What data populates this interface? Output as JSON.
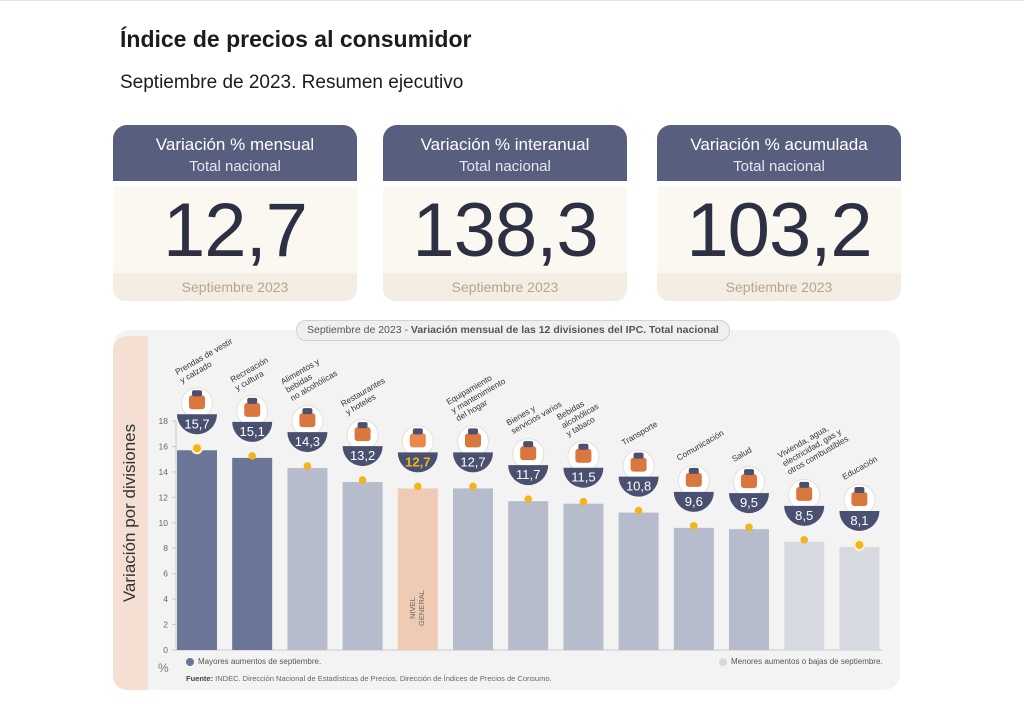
{
  "header": {
    "title": "Índice de precios al consumidor",
    "subtitle": "Septiembre de 2023. Resumen ejecutivo"
  },
  "kpis": [
    {
      "title": "Variación % mensual",
      "subtitle": "Total nacional",
      "value": "12,7",
      "footer": "Septiembre 2023"
    },
    {
      "title": "Variación % interanual",
      "subtitle": "Total nacional",
      "value": "138,3",
      "footer": "Septiembre 2023"
    },
    {
      "title": "Variación % acumulada",
      "subtitle": "Total nacional",
      "value": "103,2",
      "footer": "Septiembre 2023"
    }
  ],
  "chart": {
    "caption_prefix": "Septiembre de 2023 - ",
    "caption_bold": "Variación mensual de las 12 divisiones del IPC. Total nacional",
    "y_title": "Variación por divisiones",
    "unit_symbol": "%",
    "legend_high": "Mayores aumentos de septiembre.",
    "legend_low": "Menores aumentos o bajas de septiembre.",
    "source_label": "Fuente:",
    "source_text": " INDEC. Dirección Nacional de Estadísticas de Precios. Dirección de Índices de Precios de Consumo.",
    "colors": {
      "high": "#6a7597",
      "mid": "#b6bccb",
      "low": "#d6d9df",
      "general": "#efcbb3",
      "badge": "#4a5170",
      "marker": "#f2b41c",
      "general_value": "#f2b41c"
    }
  },
  "chart_data": {
    "type": "bar",
    "ylim": [
      0,
      18
    ],
    "yticks": [
      0,
      2,
      4,
      6,
      8,
      10,
      12,
      14,
      16,
      18
    ],
    "categories": [
      "Prendas de vestir y calzado",
      "Recreación y cultura",
      "Alimentos y bebidas no alcohólicas",
      "Restaurantes y hoteles",
      "NIVEL GENERAL",
      "Equipamiento y mantenimiento del hogar",
      "Bienes y servicios varios",
      "Bebidas alcohólicas y tabaco",
      "Transporte",
      "Comunicación",
      "Salud",
      "Vivienda, agua, electricidad, gas y otros combustibles",
      "Educación"
    ],
    "label_lines": [
      [
        "Prendas de vestir",
        "y calzado"
      ],
      [
        "Recreación",
        "y cultura"
      ],
      [
        "Alimentos y",
        "bebidas",
        "no alcohólicas"
      ],
      [
        "Restaurantes",
        "y hoteles"
      ],
      [
        "NIVEL",
        "GENERAL"
      ],
      [
        "Equipamiento",
        "y mantenimiento",
        "del hogar"
      ],
      [
        "Bienes y",
        "servicios varios"
      ],
      [
        "Bebidas",
        "alcohólicas",
        "y tabaco"
      ],
      [
        "Transporte"
      ],
      [
        "Comunicación"
      ],
      [
        "Salud"
      ],
      [
        "Vivienda, agua,",
        "electricidad, gas y",
        "otros combustibles"
      ],
      [
        "Educación"
      ]
    ],
    "values": [
      15.7,
      15.1,
      14.3,
      13.2,
      12.7,
      12.7,
      11.7,
      11.5,
      10.8,
      9.6,
      9.5,
      8.5,
      8.1
    ],
    "value_labels": [
      "15,7",
      "15,1",
      "14,3",
      "13,2",
      "12,7",
      "12,7",
      "11,7",
      "11,5",
      "10,8",
      "9,6",
      "9,5",
      "8,5",
      "8,1"
    ],
    "groups": [
      "high",
      "high",
      "mid",
      "mid",
      "general",
      "mid",
      "mid",
      "mid",
      "mid",
      "mid",
      "mid",
      "low",
      "low"
    ],
    "icons": [
      "shirt-icon",
      "umbrella-icon",
      "food-basket-icon",
      "cutlery-icon",
      "shopping-basket-icon",
      "washing-machine-icon",
      "comb-icon",
      "bottle-icon",
      "car-icon",
      "phone-icon",
      "medical-cross-icon",
      "light-bulb-icon",
      "notebook-icon"
    ],
    "grid": false,
    "legend": "bottom"
  }
}
